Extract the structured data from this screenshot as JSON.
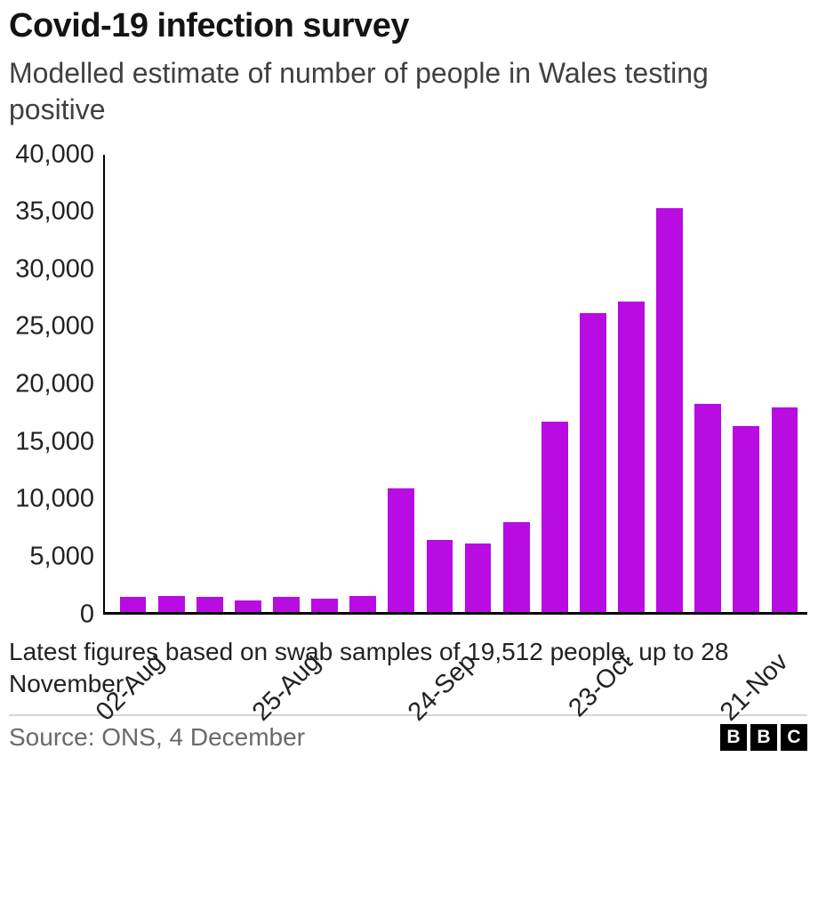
{
  "header": {
    "title": "Covid-19 infection survey",
    "subtitle": "Modelled estimate of number of people in Wales testing positive"
  },
  "chart_data": {
    "type": "bar",
    "title": "Covid-19 infection survey",
    "subtitle": "Modelled estimate of number of people in Wales testing positive",
    "xlabel": "",
    "ylabel": "",
    "ylim": [
      0,
      40000
    ],
    "grid": false,
    "legend": false,
    "bar_color": "#b80ce3",
    "y_ticks": [
      0,
      5000,
      10000,
      15000,
      20000,
      25000,
      30000,
      35000,
      40000
    ],
    "y_tick_labels": [
      "0",
      "5,000",
      "10,000",
      "15,000",
      "20,000",
      "25,000",
      "30,000",
      "35,000",
      "40,000"
    ],
    "values": [
      1300,
      1400,
      1300,
      1000,
      1300,
      1100,
      1400,
      10800,
      6300,
      6000,
      7800,
      16600,
      26100,
      27100,
      35300,
      18200,
      16200,
      17900
    ],
    "x_tick_labels": [
      {
        "label": "02-Aug",
        "bar_index": 0
      },
      {
        "label": "25-Aug",
        "bar_index": 4
      },
      {
        "label": "24-Sep",
        "bar_index": 8
      },
      {
        "label": "23-Oct",
        "bar_index": 12
      },
      {
        "label": "21-Nov",
        "bar_index": 16
      }
    ]
  },
  "footer": {
    "note": "Latest figures based on swab samples of 19,512 people, up to 28 November",
    "source": "Source: ONS, 4 December",
    "logo_letters": [
      "B",
      "B",
      "C"
    ]
  }
}
